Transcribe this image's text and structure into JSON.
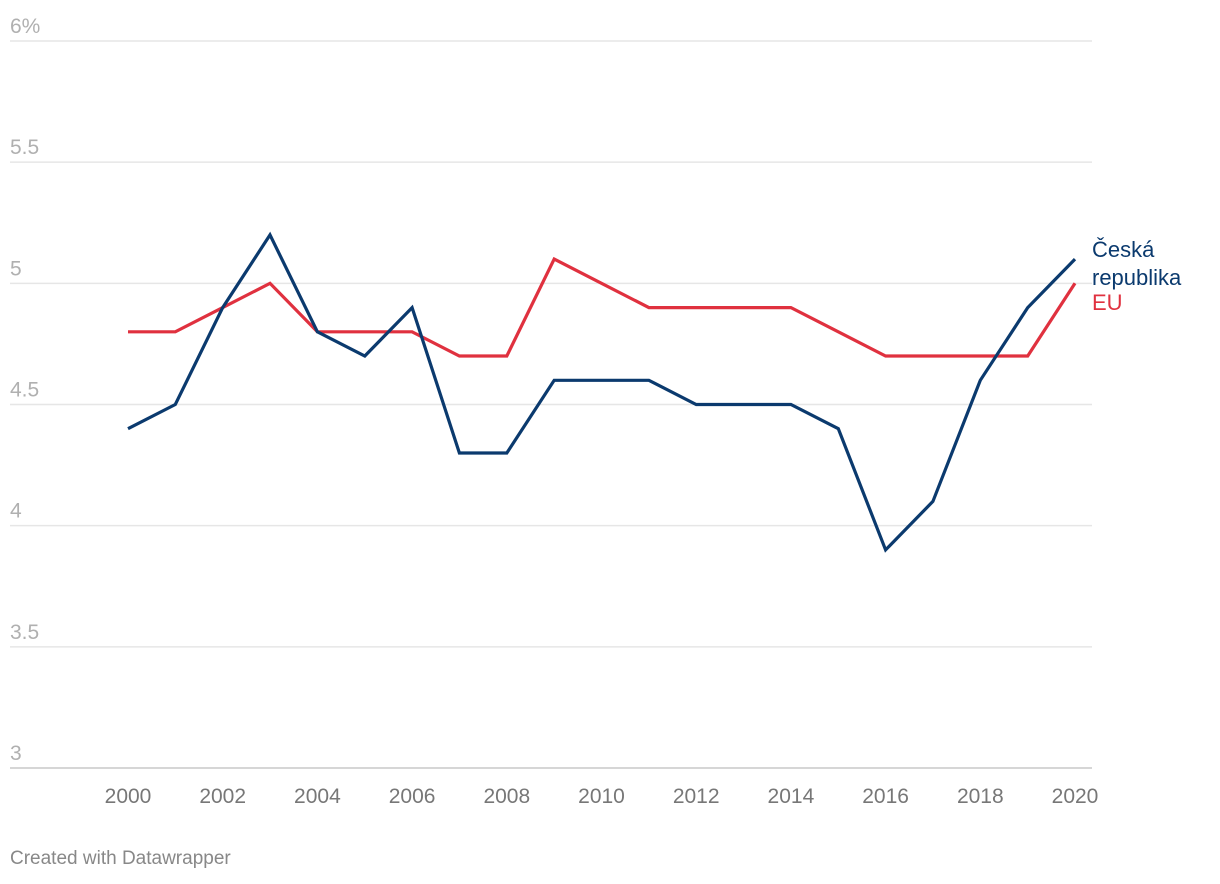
{
  "chart_data": {
    "type": "line",
    "x": [
      2000,
      2001,
      2002,
      2003,
      2004,
      2005,
      2006,
      2007,
      2008,
      2009,
      2010,
      2011,
      2012,
      2013,
      2014,
      2015,
      2016,
      2017,
      2018,
      2019,
      2020
    ],
    "x_tick_labels": [
      "2000",
      "2002",
      "2004",
      "2006",
      "2008",
      "2010",
      "2012",
      "2014",
      "2016",
      "2018",
      "2020"
    ],
    "y_tick_labels": [
      "6%",
      "5.5",
      "5",
      "4.5",
      "4",
      "3.5",
      "3"
    ],
    "ylim": [
      3,
      6
    ],
    "grid": true,
    "legend": "inline-right",
    "series": [
      {
        "name": "Česká republika",
        "label_lines": [
          "Česká",
          "republika"
        ],
        "color": "#0b3a6e",
        "values": [
          4.4,
          4.5,
          4.9,
          5.2,
          4.8,
          4.7,
          4.9,
          4.3,
          4.3,
          4.6,
          4.6,
          4.6,
          4.5,
          4.5,
          4.5,
          4.4,
          3.9,
          4.1,
          4.6,
          4.9,
          5.1
        ]
      },
      {
        "name": "EU",
        "label_lines": [
          "EU"
        ],
        "color": "#e0313f",
        "values": [
          4.8,
          4.8,
          4.9,
          5.0,
          4.8,
          4.8,
          4.8,
          4.7,
          4.7,
          5.1,
          5.0,
          4.9,
          4.9,
          4.9,
          4.9,
          4.8,
          4.7,
          4.7,
          4.7,
          4.7,
          5.0
        ]
      }
    ]
  },
  "footer": {
    "credit": "Created with Datawrapper"
  }
}
